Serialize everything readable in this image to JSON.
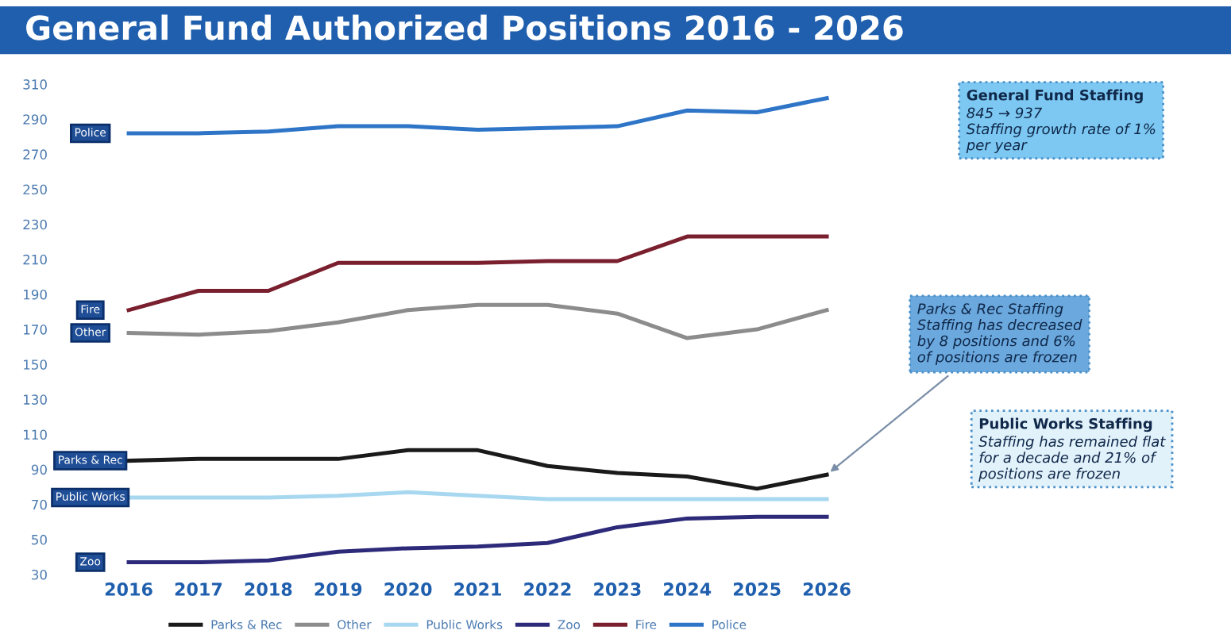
{
  "chart_data": {
    "type": "line",
    "title": "General Fund Authorized Positions 2016 - 2026",
    "categories": [
      "2016",
      "2017",
      "2018",
      "2019",
      "2020",
      "2021",
      "2022",
      "2023",
      "2024",
      "2025",
      "2026"
    ],
    "series": [
      {
        "name": "Parks & Rec",
        "color": "#1a1a1a",
        "values": [
          95,
          96,
          96,
          96,
          101,
          101,
          92,
          88,
          86,
          79,
          87
        ]
      },
      {
        "name": "Other",
        "color": "#8c8c8c",
        "values": [
          168,
          167,
          169,
          174,
          181,
          184,
          184,
          179,
          165,
          170,
          181
        ]
      },
      {
        "name": "Public Works",
        "color": "#a8d8f0",
        "values": [
          74,
          74,
          74,
          75,
          77,
          75,
          73,
          73,
          73,
          73,
          73
        ]
      },
      {
        "name": "Zoo",
        "color": "#2e2a7a",
        "values": [
          37,
          37,
          38,
          43,
          45,
          46,
          48,
          57,
          62,
          63,
          63
        ]
      },
      {
        "name": "Fire",
        "color": "#7a1f2e",
        "values": [
          181,
          192,
          192,
          208,
          208,
          208,
          209,
          209,
          223,
          223,
          223
        ]
      },
      {
        "name": "Police",
        "color": "#2e75c8",
        "values": [
          282,
          282,
          283,
          286,
          286,
          284,
          285,
          286,
          295,
          294,
          302
        ]
      }
    ],
    "ylim": [
      30,
      310
    ],
    "yticks": [
      30,
      50,
      70,
      90,
      110,
      130,
      150,
      170,
      190,
      210,
      230,
      250,
      270,
      290,
      310
    ],
    "grid": false,
    "legend": "bottom",
    "marker": "none",
    "line_style": "solid",
    "annotations": [
      "General Fund Staffing\n845 → 937\nStaffing growth rate of 1%\nper year",
      {
        "text": "Parks & Rec Staffing\nStaffing has decreased\nby 8 positions and 6%\nof positions are frozen",
        "x": "2026",
        "y": 87
      },
      "Public Works Staffing\nStaffing has remained flat\nfor a decade and 21% of\npositions are frozen"
    ]
  }
}
